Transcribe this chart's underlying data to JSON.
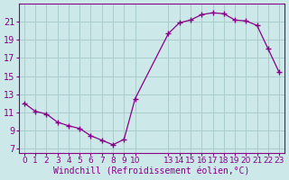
{
  "x": [
    0,
    1,
    2,
    3,
    4,
    5,
    6,
    7,
    8,
    9,
    10,
    13,
    14,
    15,
    16,
    17,
    18,
    19,
    20,
    21,
    22,
    23
  ],
  "y": [
    12.0,
    11.1,
    10.8,
    9.9,
    9.5,
    9.2,
    8.4,
    7.9,
    7.4,
    8.0,
    12.5,
    19.7,
    20.9,
    21.2,
    21.8,
    22.0,
    21.9,
    21.2,
    21.1,
    20.6,
    18.0,
    15.4
  ],
  "line_color": "#880088",
  "marker": "+",
  "marker_size": 4,
  "bg_color": "#cce8e8",
  "grid_color": "#aacccc",
  "xlabel": "Windchill (Refroidissement éolien,°C)",
  "xlabel_color": "#880088",
  "yticks": [
    7,
    9,
    11,
    13,
    15,
    17,
    19,
    21
  ],
  "ylim": [
    6.5,
    23.0
  ],
  "xlim": [
    -0.5,
    23.5
  ],
  "tick_color": "#880088",
  "label_fontsize": 7
}
